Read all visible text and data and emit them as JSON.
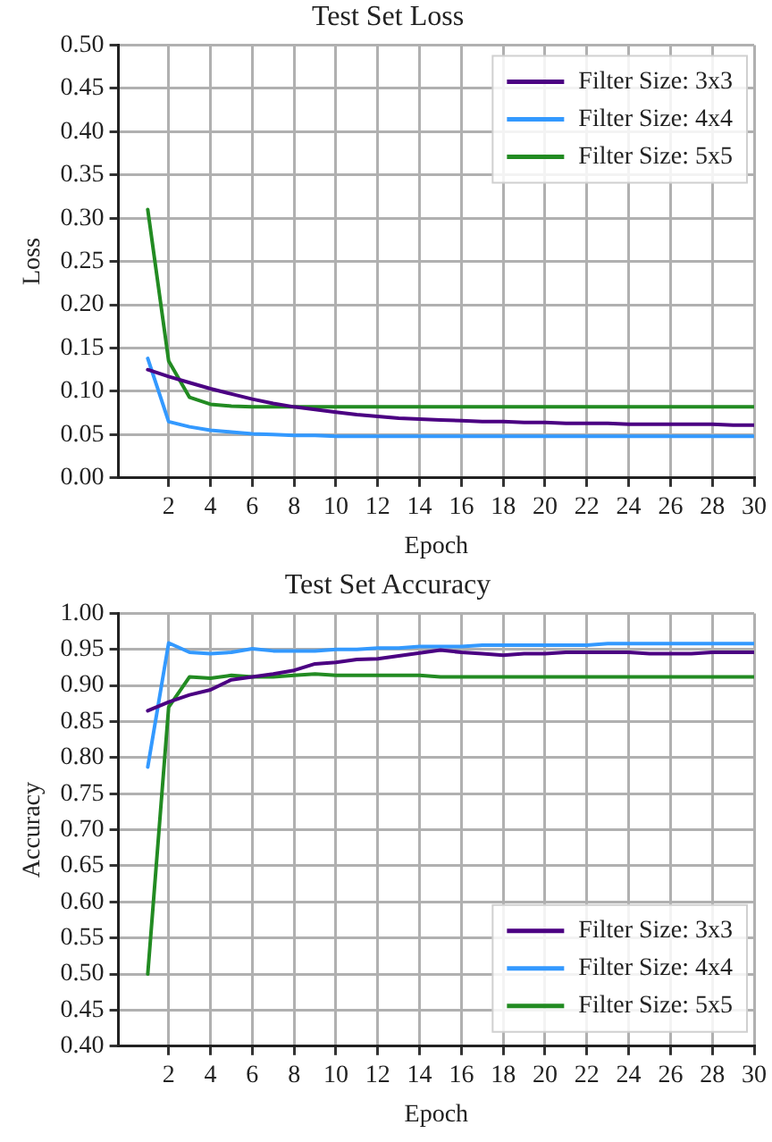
{
  "chart_data": [
    {
      "type": "line",
      "title": "Test Set Loss",
      "xlabel": "Epoch",
      "ylabel": "Loss",
      "x": [
        1,
        2,
        3,
        4,
        5,
        6,
        7,
        8,
        9,
        10,
        11,
        12,
        13,
        14,
        15,
        16,
        17,
        18,
        19,
        20,
        21,
        22,
        23,
        24,
        25,
        26,
        27,
        28,
        29,
        30
      ],
      "series": [
        {
          "name": "Filter Size: 3x3",
          "color": "#4b0082",
          "values": [
            0.125,
            0.117,
            0.11,
            0.103,
            0.097,
            0.091,
            0.086,
            0.082,
            0.079,
            0.076,
            0.073,
            0.071,
            0.069,
            0.068,
            0.067,
            0.066,
            0.065,
            0.065,
            0.064,
            0.064,
            0.063,
            0.063,
            0.063,
            0.062,
            0.062,
            0.062,
            0.062,
            0.062,
            0.061,
            0.061
          ]
        },
        {
          "name": "Filter Size: 4x4",
          "color": "#3399ff",
          "values": [
            0.138,
            0.065,
            0.059,
            0.055,
            0.053,
            0.051,
            0.05,
            0.049,
            0.049,
            0.048,
            0.048,
            0.048,
            0.048,
            0.048,
            0.048,
            0.048,
            0.048,
            0.048,
            0.048,
            0.048,
            0.048,
            0.048,
            0.048,
            0.048,
            0.048,
            0.048,
            0.048,
            0.048,
            0.048,
            0.048
          ]
        },
        {
          "name": "Filter Size: 5x5",
          "color": "#228b22",
          "values": [
            0.31,
            0.135,
            0.093,
            0.085,
            0.083,
            0.082,
            0.082,
            0.082,
            0.082,
            0.082,
            0.082,
            0.082,
            0.082,
            0.082,
            0.082,
            0.082,
            0.082,
            0.082,
            0.082,
            0.082,
            0.082,
            0.082,
            0.082,
            0.082,
            0.082,
            0.082,
            0.082,
            0.082,
            0.082,
            0.082
          ]
        }
      ],
      "xlim": [
        -0.4,
        30
      ],
      "xticks": [
        2,
        4,
        6,
        8,
        10,
        12,
        14,
        16,
        18,
        20,
        22,
        24,
        26,
        28,
        30
      ],
      "ylim": [
        0,
        0.5
      ],
      "yticks": [
        {
          "value": 0,
          "label": "0.00"
        },
        {
          "value": 0.05,
          "label": "0.05"
        },
        {
          "value": 0.1,
          "label": "0.10"
        },
        {
          "value": 0.15,
          "label": "0.15"
        },
        {
          "value": 0.2,
          "label": "0.20"
        },
        {
          "value": 0.25,
          "label": "0.25"
        },
        {
          "value": 0.3,
          "label": "0.30"
        },
        {
          "value": 0.35,
          "label": "0.35"
        },
        {
          "value": 0.4,
          "label": "0.40"
        },
        {
          "value": 0.45,
          "label": "0.45"
        },
        {
          "value": 0.5,
          "label": "0.50"
        }
      ],
      "grid": true,
      "legend": "top right",
      "marker": "none",
      "line_style": "solid"
    },
    {
      "type": "line",
      "title": "Test Set Accuracy",
      "xlabel": "Epoch",
      "ylabel": "Accuracy",
      "x": [
        1,
        2,
        3,
        4,
        5,
        6,
        7,
        8,
        9,
        10,
        11,
        12,
        13,
        14,
        15,
        16,
        17,
        18,
        19,
        20,
        21,
        22,
        23,
        24,
        25,
        26,
        27,
        28,
        29,
        30
      ],
      "series": [
        {
          "name": "Filter Size: 3x3",
          "color": "#4b0082",
          "values": [
            0.865,
            0.877,
            0.887,
            0.894,
            0.908,
            0.912,
            0.916,
            0.921,
            0.93,
            0.932,
            0.936,
            0.937,
            0.941,
            0.945,
            0.949,
            0.946,
            0.944,
            0.942,
            0.944,
            0.944,
            0.946,
            0.946,
            0.946,
            0.946,
            0.944,
            0.944,
            0.944,
            0.946,
            0.946,
            0.946
          ]
        },
        {
          "name": "Filter Size: 4x4",
          "color": "#3399ff",
          "values": [
            0.787,
            0.959,
            0.946,
            0.944,
            0.946,
            0.951,
            0.948,
            0.948,
            0.948,
            0.95,
            0.95,
            0.952,
            0.952,
            0.954,
            0.954,
            0.954,
            0.956,
            0.956,
            0.956,
            0.956,
            0.956,
            0.956,
            0.958,
            0.958,
            0.958,
            0.958,
            0.958,
            0.958,
            0.958,
            0.958
          ]
        },
        {
          "name": "Filter Size: 5x5",
          "color": "#228b22",
          "values": [
            0.5,
            0.87,
            0.912,
            0.91,
            0.914,
            0.912,
            0.912,
            0.914,
            0.916,
            0.914,
            0.914,
            0.914,
            0.914,
            0.914,
            0.912,
            0.912,
            0.912,
            0.912,
            0.912,
            0.912,
            0.912,
            0.912,
            0.912,
            0.912,
            0.912,
            0.912,
            0.912,
            0.912,
            0.912,
            0.912
          ]
        }
      ],
      "xlim": [
        -0.4,
        30
      ],
      "xticks": [
        2,
        4,
        6,
        8,
        10,
        12,
        14,
        16,
        18,
        20,
        22,
        24,
        26,
        28,
        30
      ],
      "ylim": [
        0.4,
        1.0
      ],
      "yticks": [
        {
          "value": 0.4,
          "label": "0.40"
        },
        {
          "value": 0.45,
          "label": "0.45"
        },
        {
          "value": 0.5,
          "label": "0.50"
        },
        {
          "value": 0.55,
          "label": "0.55"
        },
        {
          "value": 0.6,
          "label": "0.60"
        },
        {
          "value": 0.65,
          "label": "0.65"
        },
        {
          "value": 0.7,
          "label": "0.70"
        },
        {
          "value": 0.75,
          "label": "0.75"
        },
        {
          "value": 0.8,
          "label": "0.80"
        },
        {
          "value": 0.85,
          "label": "0.85"
        },
        {
          "value": 0.9,
          "label": "0.90"
        },
        {
          "value": 0.95,
          "label": "0.95"
        },
        {
          "value": 1.0,
          "label": "1.00"
        }
      ],
      "grid": true,
      "legend": "bottom right",
      "marker": "none",
      "line_style": "solid"
    }
  ]
}
